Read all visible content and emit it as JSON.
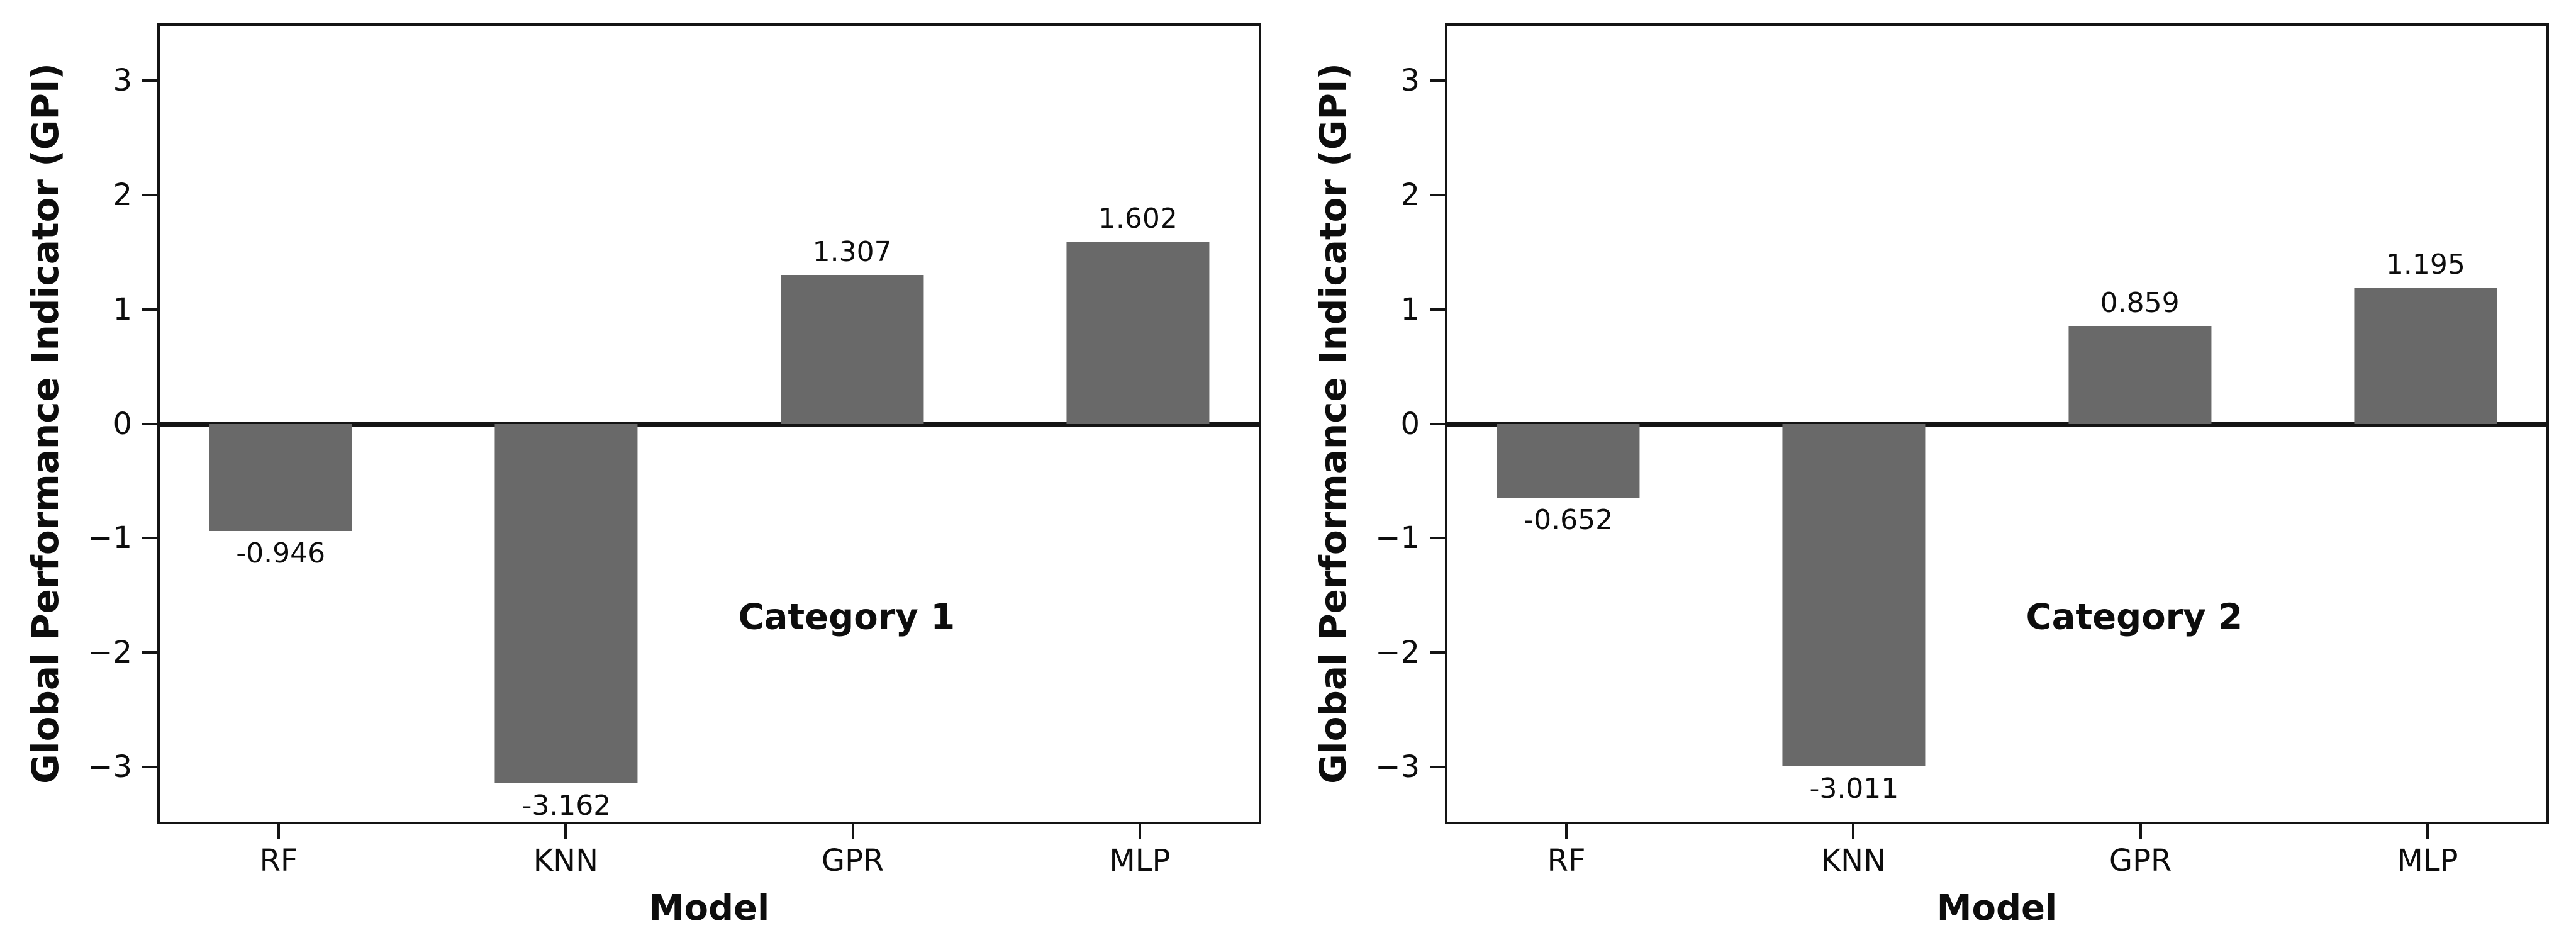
{
  "figure": {
    "bar_color": "#696969",
    "axis_color": "#141414",
    "background_color": "#ffffff"
  },
  "chart_data": [
    {
      "type": "bar",
      "annotation": "Category 1",
      "xlabel": "Model",
      "ylabel": "Global Performance Indicator (GPI)",
      "categories": [
        "RF",
        "KNN",
        "GPR",
        "MLP"
      ],
      "values": [
        -0.946,
        -3.162,
        1.307,
        1.602
      ],
      "value_labels": [
        "-0.946",
        "-3.162",
        "1.307",
        "1.602"
      ],
      "yticks": [
        3,
        2,
        1,
        0,
        -1,
        -2,
        -3
      ],
      "ytick_labels": [
        "3",
        "2",
        "1",
        "0",
        "−1",
        "−2",
        "−3"
      ],
      "ylim": [
        -3.5,
        3.5
      ],
      "grid": false,
      "legend_position": "none"
    },
    {
      "type": "bar",
      "annotation": "Category 2",
      "xlabel": "Model",
      "ylabel": "Global Performance Indicator (GPI)",
      "categories": [
        "RF",
        "KNN",
        "GPR",
        "MLP"
      ],
      "values": [
        -0.652,
        -3.011,
        0.859,
        1.195
      ],
      "value_labels": [
        "-0.652",
        "-3.011",
        "0.859",
        "1.195"
      ],
      "yticks": [
        3,
        2,
        1,
        0,
        -1,
        -2,
        -3
      ],
      "ytick_labels": [
        "3",
        "2",
        "1",
        "0",
        "−1",
        "−2",
        "−3"
      ],
      "ylim": [
        -3.5,
        3.5
      ],
      "grid": false,
      "legend_position": "none"
    }
  ]
}
